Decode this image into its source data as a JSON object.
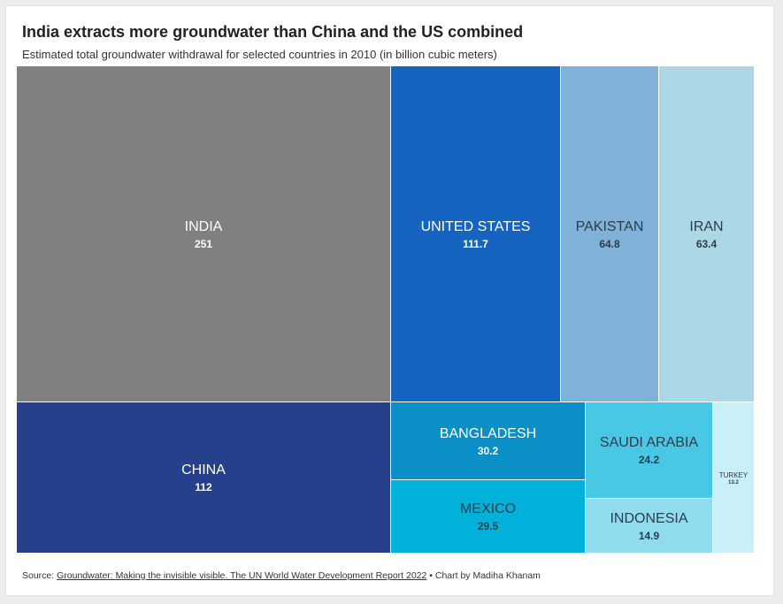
{
  "chart_data": {
    "type": "treemap",
    "title": "India extracts more groundwater than China and the US combined",
    "subtitle": "Estimated total groundwater withdrawal for selected countries in 2010 (in billion cubic meters)",
    "unit": "billion cubic meters",
    "items": [
      {
        "name": "INDIA",
        "value": 251,
        "value_label": "251",
        "color": "#808080",
        "text_color": "#ffffff"
      },
      {
        "name": "CHINA",
        "value": 112,
        "value_label": "112",
        "color": "#27408b",
        "text_color": "#ffffff"
      },
      {
        "name": "UNITED STATES",
        "value": 111.7,
        "value_label": "111.7",
        "color": "#1565c0",
        "text_color": "#ffffff"
      },
      {
        "name": "PAKISTAN",
        "value": 64.8,
        "value_label": "64.8",
        "color": "#80b1d8",
        "text_color": "#2f3b4a"
      },
      {
        "name": "IRAN",
        "value": 63.4,
        "value_label": "63.4",
        "color": "#acd8e6",
        "text_color": "#2f3b4a"
      },
      {
        "name": "BANGLADESH",
        "value": 30.2,
        "value_label": "30.2",
        "color": "#0a8fc6",
        "text_color": "#ffffff"
      },
      {
        "name": "MEXICO",
        "value": 29.5,
        "value_label": "29.5",
        "color": "#00b2d9",
        "text_color": "#2f3b4a"
      },
      {
        "name": "SAUDI ARABIA",
        "value": 24.2,
        "value_label": "24.2",
        "color": "#48c8e4",
        "text_color": "#2f3b4a"
      },
      {
        "name": "INDONESIA",
        "value": 14.9,
        "value_label": "14.9",
        "color": "#8fdcee",
        "text_color": "#2f3b4a"
      },
      {
        "name": "TURKEY",
        "value": 13.2,
        "value_label": "13.2",
        "color": "#c9eff7",
        "text_color": "#2f3b4a"
      }
    ]
  },
  "footer": {
    "source_prefix": "Source: ",
    "source_link": "Groundwater: Making the invisible visible. The UN World Water Development Report 2022",
    "credit": " • Chart by Madiha Khanam"
  }
}
